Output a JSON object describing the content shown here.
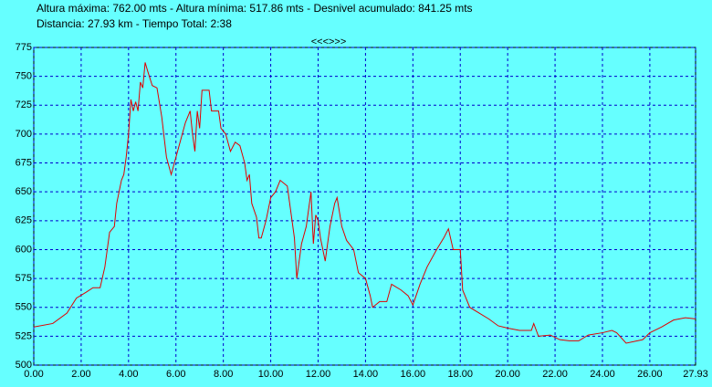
{
  "chart_data": {
    "type": "line",
    "info_lines": [
      "Altura máxima: 762.00 mts - Altura mínima: 517.86 mts - Desnivel acumulado: 841.25 mts",
      "Distancia: 27.93 km - Tiempo Total: 2:38"
    ],
    "navigation": "<<<>>>",
    "x": [
      0,
      0.8,
      1.4,
      1.8,
      2.2,
      2.5,
      2.8,
      3.0,
      3.2,
      3.4,
      3.5,
      3.7,
      3.8,
      3.9,
      4.0,
      4.1,
      4.2,
      4.3,
      4.4,
      4.5,
      4.6,
      4.7,
      4.8,
      5.0,
      5.2,
      5.4,
      5.6,
      5.8,
      6.0,
      6.2,
      6.4,
      6.6,
      6.7,
      6.8,
      6.9,
      7.0,
      7.1,
      7.4,
      7.5,
      7.8,
      7.9,
      8.1,
      8.3,
      8.5,
      8.7,
      8.9,
      9.0,
      9.1,
      9.2,
      9.4,
      9.5,
      9.6,
      9.8,
      10.0,
      10.2,
      10.4,
      10.7,
      10.8,
      11.0,
      11.1,
      11.3,
      11.5,
      11.7,
      11.8,
      11.9,
      12.0,
      12.1,
      12.3,
      12.5,
      12.7,
      12.8,
      13.0,
      13.2,
      13.5,
      13.7,
      14.0,
      14.2,
      14.3,
      14.6,
      14.9,
      15.1,
      15.5,
      15.8,
      16.0,
      16.3,
      16.6,
      17.0,
      17.3,
      17.5,
      17.7,
      18.0,
      18.1,
      18.4,
      18.8,
      19.2,
      19.6,
      20.0,
      20.5,
      21.0,
      21.1,
      21.3,
      21.8,
      22.2,
      22.6,
      23.0,
      23.4,
      24.0,
      24.4,
      24.6,
      25.0,
      25.7,
      26.0,
      26.5,
      27.0,
      27.5,
      27.93
    ],
    "series": [
      {
        "color": "#e00000",
        "values": [
          533,
          536,
          545,
          558,
          563,
          567,
          567,
          585,
          615,
          620,
          640,
          660,
          665,
          680,
          700,
          730,
          720,
          728,
          720,
          745,
          740,
          762,
          755,
          742,
          740,
          715,
          680,
          665,
          680,
          695,
          710,
          720,
          700,
          685,
          720,
          705,
          738,
          738,
          720,
          720,
          705,
          700,
          685,
          693,
          690,
          675,
          660,
          665,
          640,
          628,
          610,
          610,
          625,
          645,
          650,
          660,
          655,
          640,
          610,
          575,
          605,
          620,
          650,
          605,
          630,
          625,
          610,
          590,
          620,
          640,
          645,
          620,
          608,
          600,
          580,
          575,
          560,
          550,
          555,
          555,
          570,
          565,
          560,
          552,
          570,
          585,
          600,
          610,
          618,
          600,
          600,
          565,
          550,
          545,
          540,
          534,
          532,
          530,
          530,
          536,
          525,
          526,
          522,
          521,
          521,
          526,
          528,
          530,
          528,
          519,
          522,
          528,
          533,
          539,
          541,
          540
        ]
      }
    ],
    "xlim": [
      0,
      27.93
    ],
    "ylim": [
      500,
      775
    ],
    "xticks": [
      {
        "value": 0,
        "label": "0.00"
      },
      {
        "value": 2,
        "label": "2.00"
      },
      {
        "value": 4,
        "label": "4.00"
      },
      {
        "value": 6,
        "label": "6.00"
      },
      {
        "value": 8,
        "label": "8.00"
      },
      {
        "value": 10,
        "label": "10.00"
      },
      {
        "value": 12,
        "label": "12.00"
      },
      {
        "value": 14,
        "label": "14.00"
      },
      {
        "value": 16,
        "label": "16.00"
      },
      {
        "value": 18,
        "label": "18.00"
      },
      {
        "value": 20,
        "label": "20.00"
      },
      {
        "value": 22,
        "label": "22.00"
      },
      {
        "value": 24,
        "label": "24.00"
      },
      {
        "value": 26,
        "label": "26.00"
      },
      {
        "value": 27.93,
        "label": "27.93"
      }
    ],
    "yticks": [
      500,
      525,
      550,
      575,
      600,
      625,
      650,
      675,
      700,
      725,
      750,
      775
    ],
    "grid": true,
    "grid_color": "#0000cc"
  }
}
